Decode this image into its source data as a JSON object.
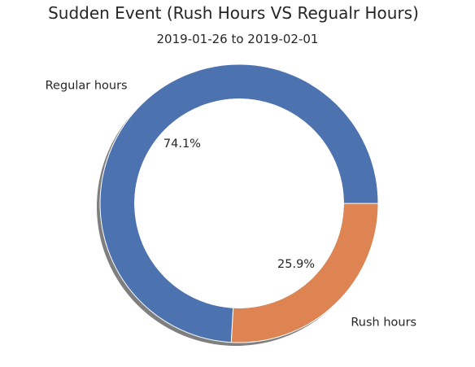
{
  "chart_data": {
    "type": "pie",
    "style": "donut",
    "title": "Sudden Event (Rush Hours VS Regualr Hours)",
    "subtitle": "2019-01-26 to 2019-02-01",
    "categories": [
      "Regular hours",
      "Rush hours"
    ],
    "values": [
      74.1,
      25.9
    ],
    "percent_labels": [
      "74.1%",
      "25.9%"
    ],
    "colors": [
      "#4c72b0",
      "#dd8452"
    ],
    "start_angle_deg": 0,
    "direction": "counterclockwise",
    "shadow": true,
    "legend": "none"
  }
}
